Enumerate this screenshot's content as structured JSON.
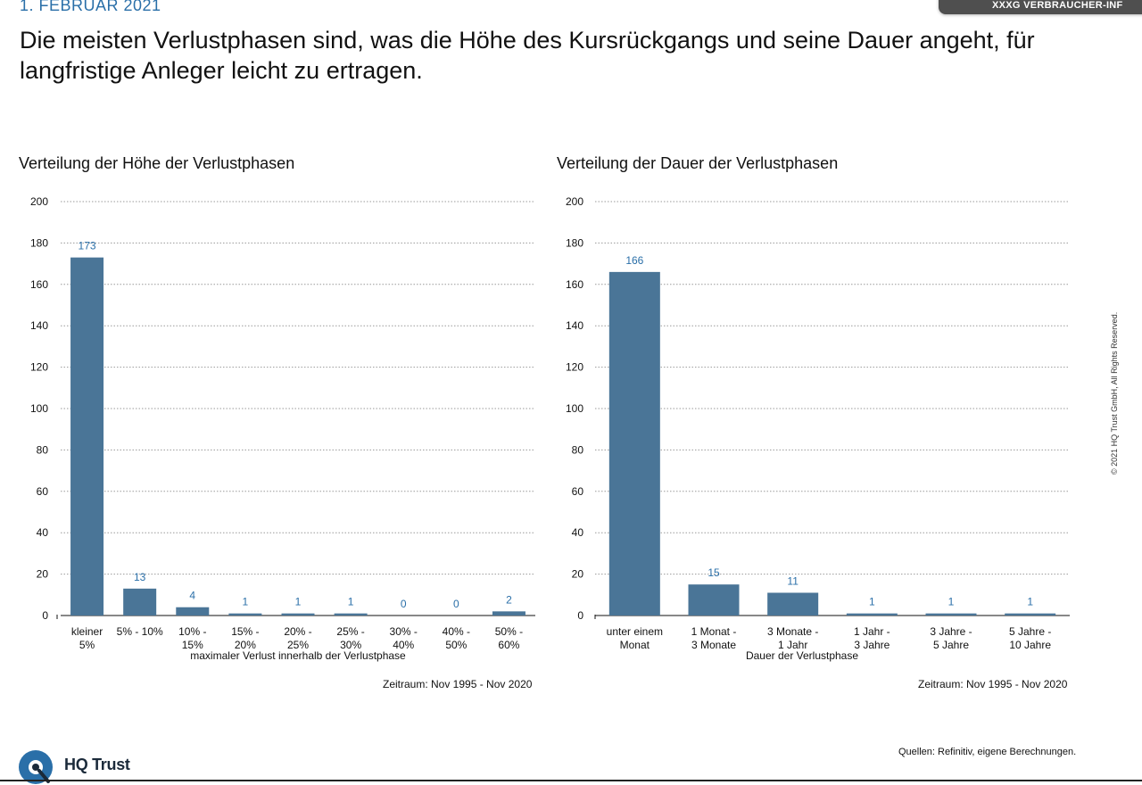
{
  "header": {
    "date": "1. FEBRUAR 2021",
    "tab_label": "XXXG VERBRAUCHER-INF",
    "headline": "Die meisten Verlustphasen sind, was die Höhe des Kursrückgangs und seine Dauer angeht, für langfristige Anleger leicht zu ertragen."
  },
  "chart_data": [
    {
      "type": "bar",
      "title": "Verteilung der Höhe der Verlustphasen",
      "xlabel": "maximaler Verlust innerhalb der Verlustphase",
      "ylabel": "",
      "ylim": [
        0,
        200
      ],
      "yticks": [
        0,
        20,
        40,
        60,
        80,
        100,
        120,
        140,
        160,
        180,
        200
      ],
      "categories": [
        [
          "kleiner",
          "5%"
        ],
        [
          "5% - 10%"
        ],
        [
          "10% -",
          "15%"
        ],
        [
          "15% -",
          "20%"
        ],
        [
          "20% -",
          "25%"
        ],
        [
          "25% -",
          "30%"
        ],
        [
          "30% -",
          "40%"
        ],
        [
          "40% -",
          "50%"
        ],
        [
          "50% -",
          "60%"
        ]
      ],
      "values": [
        173,
        13,
        4,
        1,
        1,
        1,
        0,
        0,
        2
      ],
      "grid": true,
      "bar_color": "#4a7597",
      "label_color": "#2a6fa8",
      "footnote": "Zeitraum: Nov 1995 - Nov 2020"
    },
    {
      "type": "bar",
      "title": "Verteilung der Dauer der Verlustphasen",
      "xlabel": "Dauer der Verlustphase",
      "ylabel": "",
      "ylim": [
        0,
        200
      ],
      "yticks": [
        0,
        20,
        40,
        60,
        80,
        100,
        120,
        140,
        160,
        180,
        200
      ],
      "categories": [
        [
          "unter einem",
          "Monat"
        ],
        [
          "1 Monat -",
          "3 Monate"
        ],
        [
          "3 Monate -",
          "1 Jahr"
        ],
        [
          "1 Jahr -",
          "3 Jahre"
        ],
        [
          "3 Jahre -",
          "5 Jahre"
        ],
        [
          "5 Jahre -",
          "10 Jahre"
        ]
      ],
      "values": [
        166,
        15,
        11,
        1,
        1,
        1
      ],
      "grid": true,
      "bar_color": "#4a7597",
      "label_color": "#2a6fa8",
      "footnote": "Zeitraum: Nov 1995 - Nov 2020"
    }
  ],
  "footer": {
    "copyright": "© 2021 HQ Trust GmbH, All Rights Reserved.",
    "sources": "Quellen: Refinitiv, eigene Berechnungen.",
    "brand": "HQ Trust"
  }
}
